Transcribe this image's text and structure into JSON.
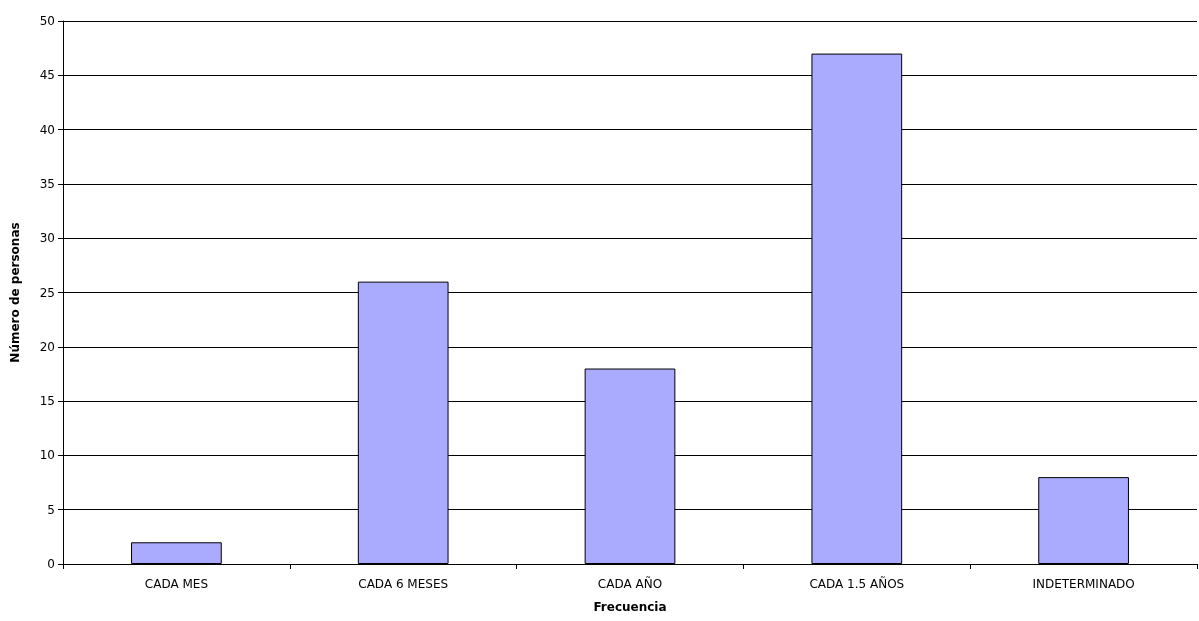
{
  "chart_data": {
    "type": "bar",
    "xlabel": "Frecuencia",
    "ylabel": "Número de personas",
    "categories": [
      "CADA MES",
      "CADA 6 MESES",
      "CADA AÑO",
      "CADA 1.5 AÑOS",
      "INDETERMINADO"
    ],
    "values": [
      2,
      26,
      18,
      47,
      8
    ],
    "color": "#aaaaff",
    "ylim": [
      0,
      50
    ],
    "yticks": [
      0,
      5,
      10,
      15,
      20,
      25,
      30,
      35,
      40,
      45,
      50
    ],
    "grid": "y"
  }
}
